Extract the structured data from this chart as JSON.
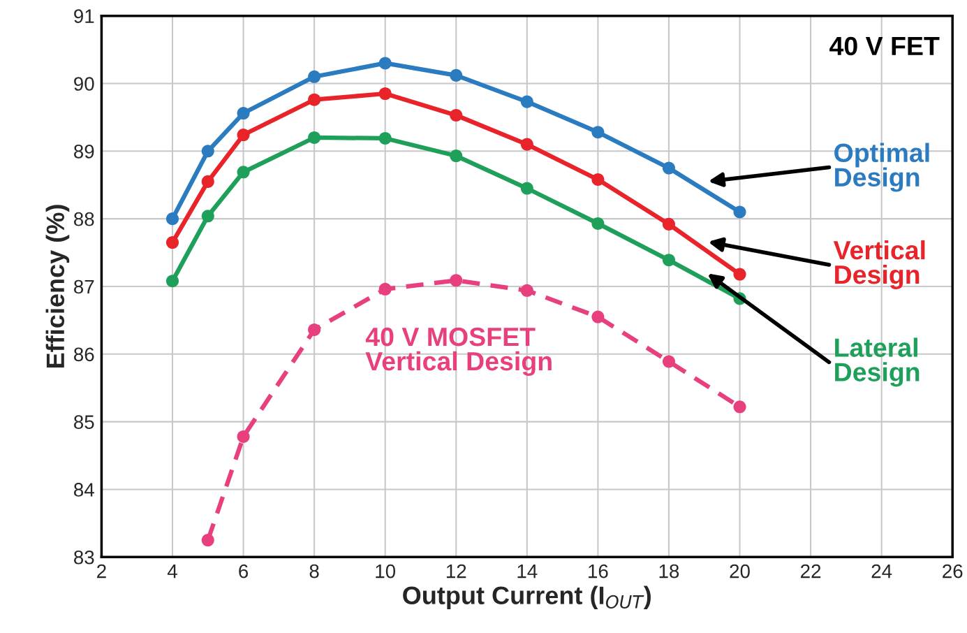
{
  "chart_data": {
    "type": "line",
    "xlabel": "Output Current (I$_{OUT}$)",
    "ylabel": "Efficiency (%)",
    "x": [
      4,
      5,
      6,
      8,
      10,
      12,
      14,
      16,
      18,
      20
    ],
    "series": [
      {
        "name": "Optimal Design",
        "color": "#2a7bc0",
        "values": [
          88.0,
          89.0,
          89.56,
          90.1,
          90.3,
          90.12,
          89.73,
          89.28,
          88.75,
          88.1
        ]
      },
      {
        "name": "Vertical Design",
        "color": "#e8232a",
        "values": [
          87.65,
          88.55,
          89.24,
          89.76,
          89.85,
          89.53,
          89.1,
          88.58,
          87.92,
          87.18
        ]
      },
      {
        "name": "Lateral Design",
        "color": "#1fa05a",
        "values": [
          87.08,
          88.04,
          88.69,
          89.2,
          89.19,
          88.93,
          88.45,
          87.93,
          87.39,
          86.82
        ]
      },
      {
        "name": "40 V MOSFET Vertical Design",
        "color": "#e8407f",
        "line_style": "dashed",
        "values": [
          null,
          83.25,
          84.78,
          86.36,
          86.96,
          87.09,
          86.94,
          86.55,
          85.89,
          85.22
        ]
      }
    ],
    "annotations": [
      "40 V FET"
    ],
    "xlim": [
      2,
      26
    ],
    "xticks": [
      2,
      4,
      6,
      8,
      10,
      12,
      14,
      16,
      18,
      20,
      22,
      24,
      26
    ],
    "ylim": [
      83,
      91
    ],
    "yticks": [
      83,
      84,
      85,
      86,
      87,
      88,
      89,
      90,
      91
    ],
    "grid": true,
    "legend": false,
    "marker": "circle"
  }
}
